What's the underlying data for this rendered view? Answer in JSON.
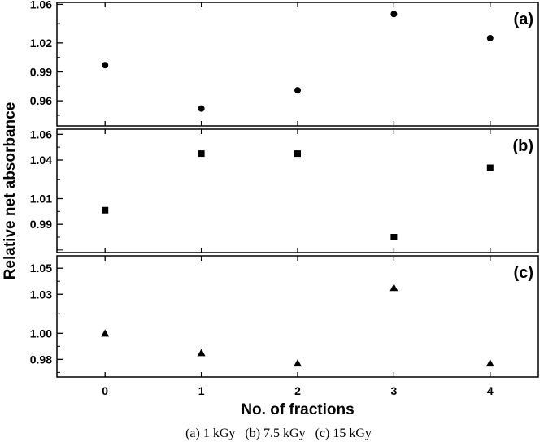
{
  "chart_data": {
    "type": "scatter",
    "xlabel": "No. of fractions",
    "ylabel": "Relative net absorbance",
    "x_ticks": [
      "0",
      "1",
      "2",
      "3",
      "4"
    ],
    "xlim": [
      -0.5,
      4.5
    ],
    "grid": false,
    "panels": [
      {
        "label": "(a)",
        "marker": "circle",
        "ylim": [
          0.934,
          1.062
        ],
        "y_ticks": [
          "1.06",
          "1.02",
          "0.99",
          "0.96"
        ],
        "x": [
          0,
          1,
          2,
          3,
          4
        ],
        "y": [
          0.997,
          0.952,
          0.971,
          1.05,
          1.025
        ]
      },
      {
        "label": "(b)",
        "marker": "square",
        "ylim": [
          0.968,
          1.064
        ],
        "y_ticks": [
          "1.06",
          "1.04",
          "1.01",
          "0.99"
        ],
        "x": [
          0,
          1,
          2,
          3,
          4
        ],
        "y": [
          1.001,
          1.045,
          1.045,
          0.98,
          1.034
        ]
      },
      {
        "label": "(c)",
        "marker": "triangle",
        "ylim": [
          0.9665,
          1.0595
        ],
        "y_ticks": [
          "1.05",
          "1.03",
          "1.00",
          "0.98"
        ],
        "x": [
          0,
          1,
          2,
          3,
          4
        ],
        "y": [
          1.0,
          0.985,
          0.977,
          1.035,
          0.977
        ]
      }
    ],
    "caption": "(a) 1 kGy   (b) 7.5 kGy   (c) 15 kGy"
  }
}
